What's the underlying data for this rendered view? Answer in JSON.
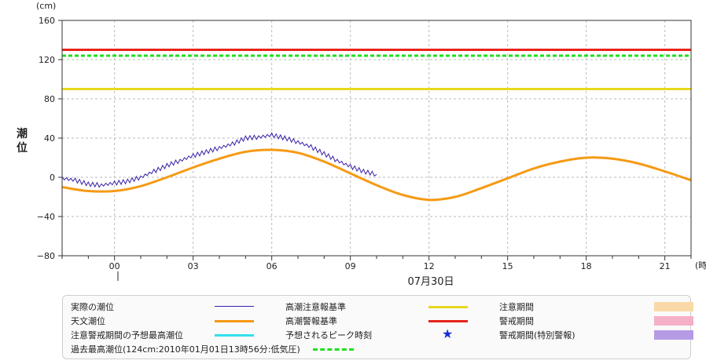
{
  "chart_data": {
    "type": "line",
    "y_unit": "(cm)",
    "y_title": "潮位",
    "x_unit": "(時)",
    "date_label": "07月30日",
    "ylim": [
      -80,
      160
    ],
    "y_ticks": [
      "160",
      "120",
      "80",
      "40",
      "0",
      "−40",
      "−80"
    ],
    "y_tick_values": [
      160,
      120,
      80,
      40,
      0,
      -40,
      -80
    ],
    "x_range_hours": [
      -2,
      22
    ],
    "x_ticks": [
      "00",
      "03",
      "06",
      "09",
      "12",
      "15",
      "18",
      "21"
    ],
    "x_tick_values": [
      0,
      3,
      6,
      9,
      12,
      15,
      18,
      21
    ],
    "grid": true,
    "reference_lines": [
      {
        "name": "高潮注意報基準",
        "value": 90,
        "color": "#e8d81c",
        "style": "solid"
      },
      {
        "name": "高潮警報基準",
        "value": 130,
        "color": "#e8241c",
        "style": "solid"
      },
      {
        "name": "過去最高潮位",
        "value": 124,
        "color": "#22dd22",
        "style": "dashed"
      }
    ],
    "series": [
      {
        "name": "天文潮位",
        "color": "#f59a14",
        "x": [
          -2,
          -1,
          0,
          1,
          2,
          3,
          4,
          5,
          6,
          7,
          8,
          9,
          10,
          11,
          12,
          13,
          14,
          15,
          16,
          17,
          18,
          19,
          20,
          21,
          22
        ],
        "y": [
          -10,
          -14,
          -14,
          -9,
          0,
          10,
          19,
          26,
          28,
          25,
          16,
          4,
          -8,
          -18,
          -23,
          -20,
          -11,
          -1,
          9,
          16,
          20,
          19,
          14,
          6,
          -3
        ]
      },
      {
        "name": "実際の潮位",
        "color": "#3a1fa8",
        "x": [
          -2,
          -1.5,
          -1,
          -0.5,
          0,
          0.5,
          1,
          1.5,
          2,
          2.5,
          3,
          3.5,
          4,
          4.5,
          5,
          5.5,
          6,
          6.5,
          7,
          7.5,
          8,
          8.5,
          9,
          9.5,
          10
        ],
        "y": [
          -1,
          -3,
          -7,
          -8,
          -6,
          -4,
          0,
          6,
          12,
          17,
          22,
          26,
          30,
          34,
          40,
          41,
          43,
          40,
          36,
          31,
          24,
          17,
          11,
          6,
          3
        ]
      }
    ]
  },
  "legend": {
    "items": [
      {
        "label": "実際の潮位",
        "symbol": "line",
        "color": "#3a1fa8"
      },
      {
        "label": "高潮注意報基準",
        "symbol": "line",
        "color": "#e8d81c"
      },
      {
        "label": "注意期間",
        "symbol": "block",
        "color": "#f9d9a8"
      },
      {
        "label": "天文潮位",
        "symbol": "line",
        "color": "#f59a14"
      },
      {
        "label": "高潮警報基準",
        "symbol": "line",
        "color": "#e8241c"
      },
      {
        "label": "警戒期間",
        "symbol": "block",
        "color": "#f6afc8"
      },
      {
        "label": "注意警戒期間の予想最高潮位",
        "symbol": "line",
        "color": "#33e0ee"
      },
      {
        "label": "予想されるピーク時刻",
        "symbol": "star",
        "color": "#1a2fd6",
        "glyph": "★"
      },
      {
        "label": "警戒期間(特別警報)",
        "symbol": "block",
        "color": "#b79ae6"
      },
      {
        "label": "過去最高潮位(124cm:2010年01月01日13時56分:低気圧)",
        "symbol": "dashed",
        "color": "#22dd22"
      }
    ]
  }
}
